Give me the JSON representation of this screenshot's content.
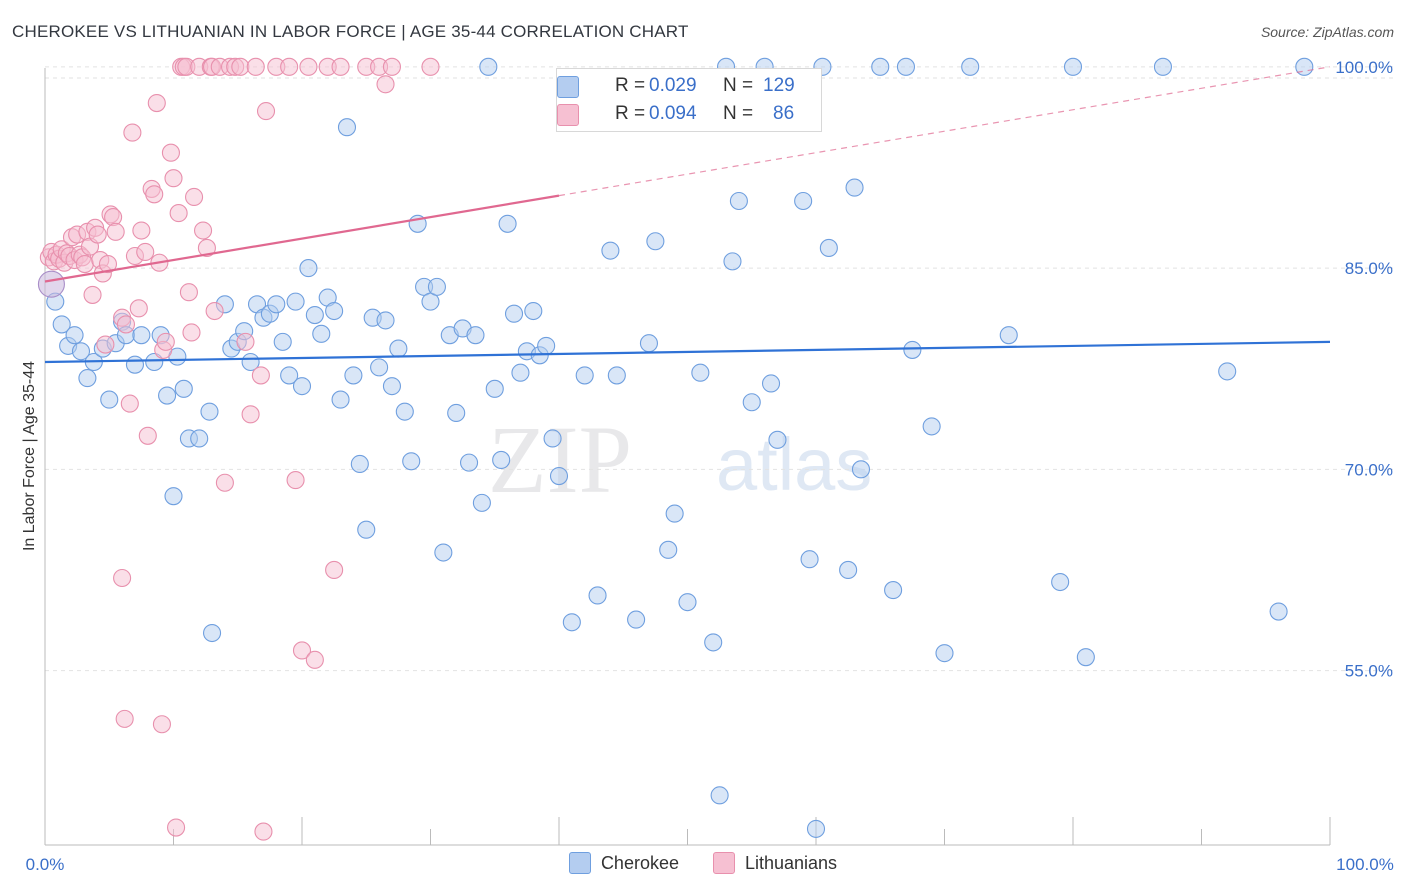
{
  "title": "CHEROKEE VS LITHUANIAN IN LABOR FORCE | AGE 35-44 CORRELATION CHART",
  "source": "Source: ZipAtlas.com",
  "watermark": {
    "zip": "ZIP",
    "atlas": "atlas"
  },
  "stats": [
    {
      "r_label": "R =",
      "r": "0.029",
      "n_label": "N =",
      "n": "129"
    },
    {
      "r_label": "R =",
      "r": "0.094",
      "n_label": "N =",
      "n": "86"
    }
  ],
  "chart_data": {
    "type": "scatter",
    "title": "CHEROKEE VS LITHUANIAN IN LABOR FORCE | AGE 35-44 CORRELATION CHART",
    "xlabel": "",
    "ylabel": "In Labor Force | Age 35-44",
    "xlim": [
      0,
      100
    ],
    "ylim": [
      42,
      102
    ],
    "y_ticks": [
      55,
      70,
      85,
      100
    ],
    "y_tick_labels": [
      "55.0%",
      "70.0%",
      "85.0%",
      "100.0%"
    ],
    "x_tick_labels": [
      "0.0%",
      "100.0%"
    ],
    "legend": "bottom",
    "series": [
      {
        "name": "Cherokee",
        "color": "#6f9fdf",
        "fill": "#b4cdf0",
        "line_color": "#2f72d6",
        "trend": {
          "x1": 0,
          "y1": 78.0,
          "x2": 100,
          "y2": 79.5,
          "dashed_from": null
        },
        "points": [
          [
            0.8,
            82.5
          ],
          [
            1.3,
            80.8
          ],
          [
            1.8,
            79.2
          ],
          [
            2.3,
            80.0
          ],
          [
            2.8,
            78.8
          ],
          [
            3.3,
            76.8
          ],
          [
            3.8,
            78.0
          ],
          [
            4.5,
            79.0
          ],
          [
            5.0,
            75.2
          ],
          [
            5.5,
            79.4
          ],
          [
            6.0,
            81.0
          ],
          [
            6.3,
            80.0
          ],
          [
            7.0,
            77.8
          ],
          [
            7.5,
            80.0
          ],
          [
            8.5,
            78.0
          ],
          [
            9.0,
            80.0
          ],
          [
            9.5,
            75.5
          ],
          [
            10.0,
            68.0
          ],
          [
            10.3,
            78.4
          ],
          [
            10.8,
            76.0
          ],
          [
            11.2,
            72.3
          ],
          [
            12.0,
            72.3
          ],
          [
            12.8,
            74.3
          ],
          [
            13.0,
            57.8
          ],
          [
            14.0,
            82.3
          ],
          [
            14.5,
            79.0
          ],
          [
            15.0,
            79.5
          ],
          [
            15.5,
            80.3
          ],
          [
            16.0,
            78.0
          ],
          [
            16.5,
            82.3
          ],
          [
            17.0,
            81.3
          ],
          [
            17.5,
            81.6
          ],
          [
            18.0,
            82.3
          ],
          [
            18.5,
            79.5
          ],
          [
            19.0,
            77.0
          ],
          [
            19.5,
            82.5
          ],
          [
            20.0,
            76.2
          ],
          [
            20.5,
            85.0
          ],
          [
            21.0,
            81.5
          ],
          [
            21.5,
            80.1
          ],
          [
            22.0,
            82.8
          ],
          [
            22.5,
            81.8
          ],
          [
            23.0,
            75.2
          ],
          [
            23.5,
            95.5
          ],
          [
            24.0,
            77.0
          ],
          [
            24.5,
            70.4
          ],
          [
            25.0,
            65.5
          ],
          [
            25.5,
            81.3
          ],
          [
            26.0,
            77.6
          ],
          [
            26.5,
            81.1
          ],
          [
            27.0,
            76.2
          ],
          [
            27.5,
            79.0
          ],
          [
            28.0,
            74.3
          ],
          [
            28.5,
            70.6
          ],
          [
            29.0,
            88.3
          ],
          [
            29.5,
            83.6
          ],
          [
            30.0,
            82.5
          ],
          [
            30.5,
            83.6
          ],
          [
            31.0,
            63.8
          ],
          [
            31.5,
            80.0
          ],
          [
            32.0,
            74.2
          ],
          [
            32.5,
            80.5
          ],
          [
            33.0,
            70.5
          ],
          [
            33.5,
            80.0
          ],
          [
            34.0,
            67.5
          ],
          [
            34.5,
            100.0
          ],
          [
            35.0,
            76.0
          ],
          [
            35.5,
            70.7
          ],
          [
            36.0,
            88.3
          ],
          [
            36.5,
            81.6
          ],
          [
            37.0,
            77.2
          ],
          [
            37.5,
            78.8
          ],
          [
            38.0,
            81.8
          ],
          [
            38.5,
            78.5
          ],
          [
            39.0,
            79.2
          ],
          [
            39.5,
            72.3
          ],
          [
            40.0,
            69.5
          ],
          [
            41.0,
            58.6
          ],
          [
            42.0,
            77.0
          ],
          [
            43.0,
            60.6
          ],
          [
            44.0,
            86.3
          ],
          [
            44.5,
            77.0
          ],
          [
            46.0,
            58.8
          ],
          [
            47.0,
            79.4
          ],
          [
            47.5,
            87.0
          ],
          [
            48.5,
            64.0
          ],
          [
            49.0,
            66.7
          ],
          [
            50.0,
            60.1
          ],
          [
            51.0,
            77.2
          ],
          [
            52.0,
            57.1
          ],
          [
            52.5,
            45.7
          ],
          [
            53.0,
            100.0
          ],
          [
            53.5,
            85.5
          ],
          [
            54.0,
            90.0
          ],
          [
            55.0,
            75.0
          ],
          [
            56.0,
            100.0
          ],
          [
            56.5,
            76.4
          ],
          [
            57.0,
            72.2
          ],
          [
            59.0,
            90.0
          ],
          [
            59.5,
            63.3
          ],
          [
            60.0,
            43.2
          ],
          [
            60.5,
            100.0
          ],
          [
            61.0,
            86.5
          ],
          [
            62.5,
            62.5
          ],
          [
            63.0,
            91.0
          ],
          [
            63.5,
            70.0
          ],
          [
            65.0,
            100.0
          ],
          [
            66.0,
            61.0
          ],
          [
            67.0,
            100.0
          ],
          [
            67.5,
            78.9
          ],
          [
            69.0,
            73.2
          ],
          [
            70.0,
            56.3
          ],
          [
            72.0,
            100.0
          ],
          [
            75.0,
            80.0
          ],
          [
            79.0,
            61.6
          ],
          [
            80.0,
            100.0
          ],
          [
            81.0,
            56.0
          ],
          [
            87.0,
            100.0
          ],
          [
            92.0,
            77.3
          ],
          [
            96.0,
            59.4
          ],
          [
            98.0,
            100.0
          ]
        ]
      },
      {
        "name": "Lithuanians",
        "color": "#e890ad",
        "fill": "#f6c0d2",
        "line_color": "#e06890",
        "trend": {
          "x1": 0,
          "y1": 84.0,
          "x2": 100,
          "y2": 100.0,
          "dashed_from": 40
        },
        "points": [
          [
            0.3,
            85.8
          ],
          [
            0.5,
            86.2
          ],
          [
            0.7,
            85.5
          ],
          [
            0.9,
            86.0
          ],
          [
            1.1,
            85.7
          ],
          [
            1.3,
            86.4
          ],
          [
            1.5,
            85.4
          ],
          [
            1.7,
            86.1
          ],
          [
            1.9,
            85.9
          ],
          [
            2.1,
            87.3
          ],
          [
            2.3,
            85.6
          ],
          [
            2.5,
            87.5
          ],
          [
            2.7,
            86.0
          ],
          [
            2.9,
            85.8
          ],
          [
            3.1,
            85.3
          ],
          [
            3.3,
            87.7
          ],
          [
            3.5,
            86.6
          ],
          [
            3.7,
            83.0
          ],
          [
            3.9,
            88.0
          ],
          [
            4.1,
            87.5
          ],
          [
            4.3,
            85.6
          ],
          [
            4.5,
            84.6
          ],
          [
            4.7,
            79.3
          ],
          [
            4.9,
            85.3
          ],
          [
            5.1,
            89.0
          ],
          [
            5.3,
            88.8
          ],
          [
            5.5,
            87.7
          ],
          [
            6.0,
            81.3
          ],
          [
            6.3,
            80.8
          ],
          [
            6.6,
            74.9
          ],
          [
            6.8,
            95.1
          ],
          [
            7.0,
            85.9
          ],
          [
            7.3,
            82.0
          ],
          [
            7.5,
            87.8
          ],
          [
            7.8,
            86.2
          ],
          [
            8.0,
            72.5
          ],
          [
            8.3,
            90.9
          ],
          [
            8.5,
            90.5
          ],
          [
            8.7,
            97.3
          ],
          [
            8.9,
            85.4
          ],
          [
            9.2,
            78.9
          ],
          [
            9.4,
            79.5
          ],
          [
            9.8,
            93.6
          ],
          [
            10.0,
            91.7
          ],
          [
            10.2,
            43.3
          ],
          [
            10.4,
            89.1
          ],
          [
            10.6,
            100.0
          ],
          [
            10.8,
            100.0
          ],
          [
            11.0,
            100.0
          ],
          [
            11.2,
            83.2
          ],
          [
            11.4,
            80.2
          ],
          [
            11.6,
            90.3
          ],
          [
            12.0,
            100.0
          ],
          [
            12.3,
            87.8
          ],
          [
            12.6,
            86.5
          ],
          [
            12.9,
            100.0
          ],
          [
            13.0,
            100.0
          ],
          [
            13.2,
            81.8
          ],
          [
            13.6,
            100.0
          ],
          [
            14.0,
            69.0
          ],
          [
            14.4,
            100.0
          ],
          [
            14.8,
            100.0
          ],
          [
            15.2,
            100.0
          ],
          [
            15.6,
            79.5
          ],
          [
            16.0,
            74.1
          ],
          [
            16.4,
            100.0
          ],
          [
            16.8,
            77.0
          ],
          [
            17.0,
            43.0
          ],
          [
            17.2,
            96.7
          ],
          [
            18.0,
            100.0
          ],
          [
            19.0,
            100.0
          ],
          [
            19.5,
            69.2
          ],
          [
            20.0,
            56.5
          ],
          [
            20.5,
            100.0
          ],
          [
            21.0,
            55.8
          ],
          [
            22.0,
            100.0
          ],
          [
            22.5,
            62.5
          ],
          [
            23.0,
            100.0
          ],
          [
            25.0,
            100.0
          ],
          [
            26.0,
            100.0
          ],
          [
            26.5,
            98.7
          ],
          [
            27.0,
            100.0
          ],
          [
            30.0,
            100.0
          ],
          [
            6.0,
            61.9
          ],
          [
            6.2,
            51.4
          ],
          [
            9.1,
            51.0
          ]
        ]
      }
    ]
  }
}
